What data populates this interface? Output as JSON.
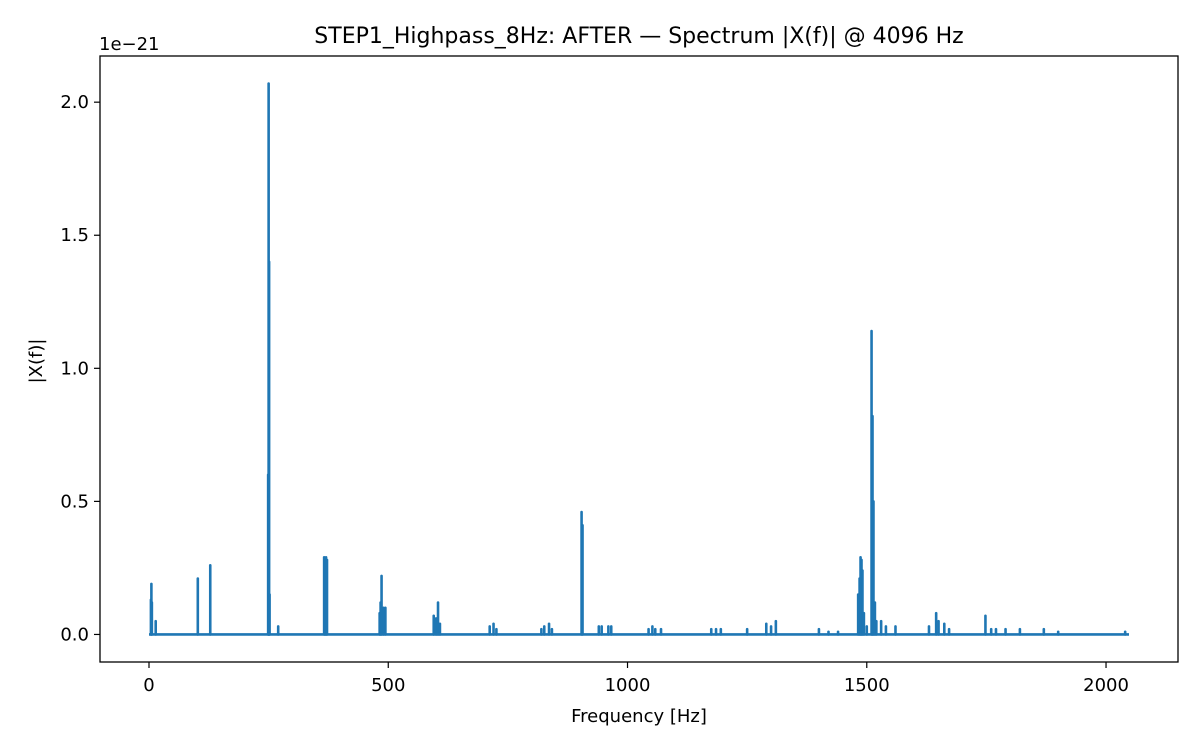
{
  "chart_data": {
    "type": "line",
    "title": "STEP1_Highpass_8Hz: AFTER — Spectrum |X(f)| @ 4096 Hz",
    "xlabel": "Frequency [Hz]",
    "ylabel": "|X(f)|",
    "offset_label": "1e−21",
    "xlim": [
      -102.4,
      2150.4
    ],
    "ylim": [
      -0.1035,
      2.1735
    ],
    "xticks": [
      0,
      500,
      1000,
      1500,
      2000
    ],
    "xtick_labels": [
      "0",
      "500",
      "1000",
      "1500",
      "2000"
    ],
    "yticks": [
      0.0,
      0.5,
      1.0,
      1.5,
      2.0
    ],
    "ytick_labels": [
      "0.0",
      "0.5",
      "1.0",
      "1.5",
      "2.0"
    ],
    "grid": false,
    "series": [
      {
        "color": "#1f77b4",
        "peaks": [
          [
            4,
            0.13
          ],
          [
            5,
            0.19
          ],
          [
            6,
            0.12
          ],
          [
            14,
            0.05
          ],
          [
            102,
            0.21
          ],
          [
            128,
            0.26
          ],
          [
            249,
            0.6
          ],
          [
            250,
            2.07
          ],
          [
            251,
            1.4
          ],
          [
            252,
            0.15
          ],
          [
            270,
            0.03
          ],
          [
            366,
            0.29
          ],
          [
            368,
            0.28
          ],
          [
            370,
            0.29
          ],
          [
            372,
            0.28
          ],
          [
            482,
            0.08
          ],
          [
            484,
            0.12
          ],
          [
            486,
            0.22
          ],
          [
            490,
            0.1
          ],
          [
            494,
            0.1
          ],
          [
            595,
            0.07
          ],
          [
            600,
            0.06
          ],
          [
            604,
            0.12
          ],
          [
            608,
            0.04
          ],
          [
            712,
            0.03
          ],
          [
            720,
            0.04
          ],
          [
            726,
            0.02
          ],
          [
            820,
            0.02
          ],
          [
            826,
            0.03
          ],
          [
            836,
            0.04
          ],
          [
            842,
            0.02
          ],
          [
            904,
            0.46
          ],
          [
            906,
            0.41
          ],
          [
            940,
            0.03
          ],
          [
            946,
            0.03
          ],
          [
            960,
            0.03
          ],
          [
            966,
            0.03
          ],
          [
            1044,
            0.02
          ],
          [
            1052,
            0.03
          ],
          [
            1058,
            0.02
          ],
          [
            1070,
            0.02
          ],
          [
            1175,
            0.02
          ],
          [
            1185,
            0.02
          ],
          [
            1195,
            0.02
          ],
          [
            1250,
            0.02
          ],
          [
            1290,
            0.04
          ],
          [
            1300,
            0.03
          ],
          [
            1310,
            0.05
          ],
          [
            1400,
            0.02
          ],
          [
            1420,
            0.01
          ],
          [
            1440,
            0.01
          ],
          [
            1482,
            0.15
          ],
          [
            1485,
            0.21
          ],
          [
            1487,
            0.29
          ],
          [
            1489,
            0.28
          ],
          [
            1491,
            0.24
          ],
          [
            1494,
            0.08
          ],
          [
            1500,
            0.03
          ],
          [
            1510,
            1.14
          ],
          [
            1512,
            0.82
          ],
          [
            1514,
            0.5
          ],
          [
            1517,
            0.12
          ],
          [
            1520,
            0.05
          ],
          [
            1530,
            0.05
          ],
          [
            1540,
            0.03
          ],
          [
            1560,
            0.03
          ],
          [
            1630,
            0.03
          ],
          [
            1645,
            0.08
          ],
          [
            1650,
            0.05
          ],
          [
            1662,
            0.04
          ],
          [
            1672,
            0.02
          ],
          [
            1748,
            0.07
          ],
          [
            1760,
            0.02
          ],
          [
            1770,
            0.02
          ],
          [
            1790,
            0.02
          ],
          [
            1820,
            0.02
          ],
          [
            1870,
            0.02
          ],
          [
            1900,
            0.01
          ],
          [
            2040,
            0.01
          ]
        ]
      }
    ]
  }
}
